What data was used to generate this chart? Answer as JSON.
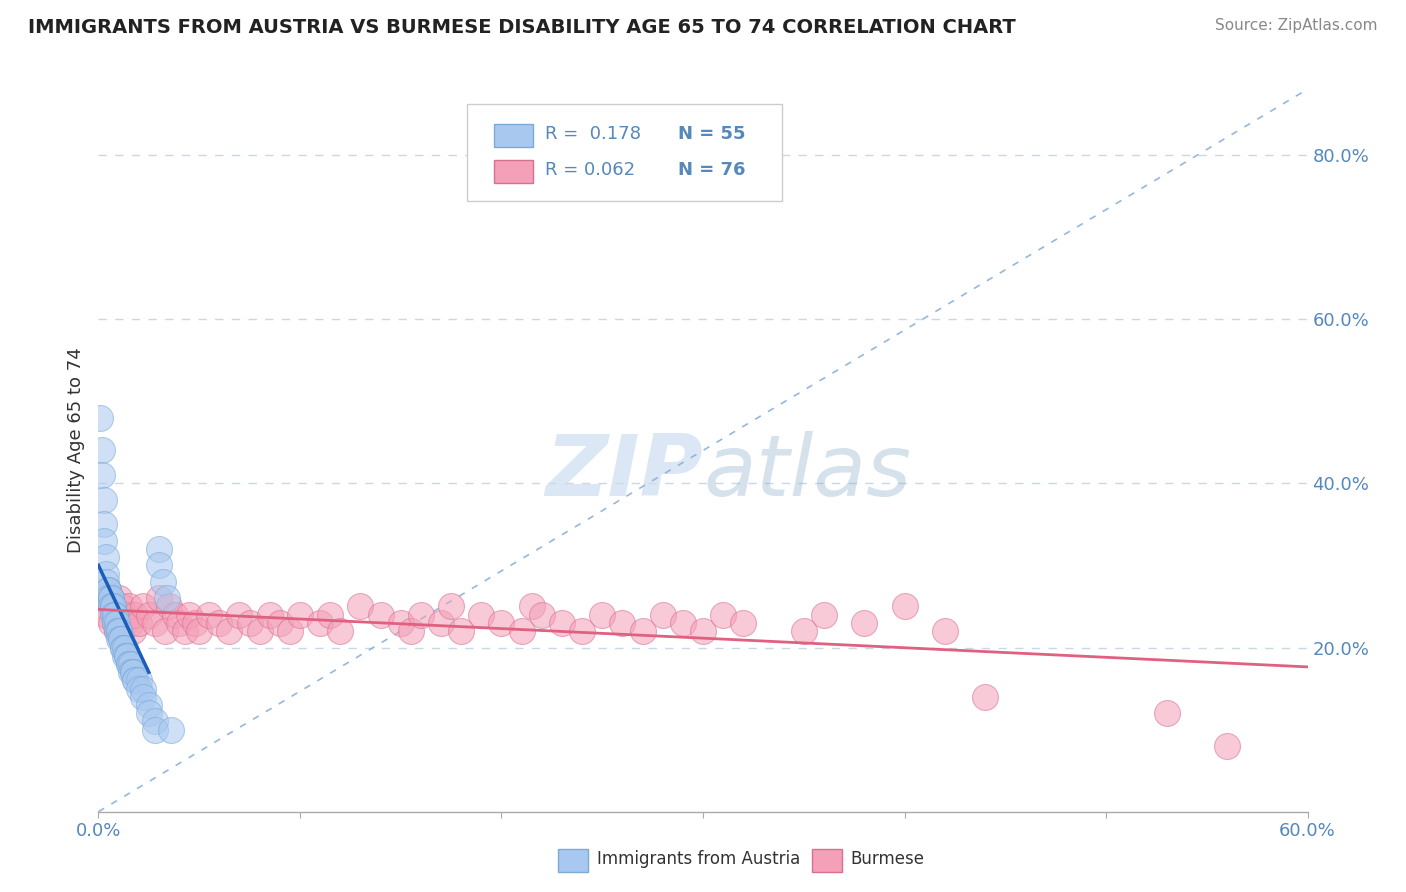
{
  "title": "IMMIGRANTS FROM AUSTRIA VS BURMESE DISABILITY AGE 65 TO 74 CORRELATION CHART",
  "source": "Source: ZipAtlas.com",
  "ylabel": "Disability Age 65 to 74",
  "xlim": [
    0.0,
    0.6
  ],
  "ylim": [
    0.0,
    0.88
  ],
  "austria_color": "#a8c8f0",
  "austria_edge_color": "#7aaad8",
  "burmese_color": "#f4a0b8",
  "burmese_edge_color": "#d87090",
  "austria_line_color": "#1a5eb8",
  "burmese_line_color": "#e06080",
  "ref_line_color": "#8ab0d8",
  "grid_color": "#c8d8e8",
  "background_color": "#ffffff",
  "watermark_color": "#ccddf0",
  "tick_label_color": "#5588bb",
  "title_color": "#222222",
  "source_color": "#888888",
  "ylabel_color": "#333333"
}
